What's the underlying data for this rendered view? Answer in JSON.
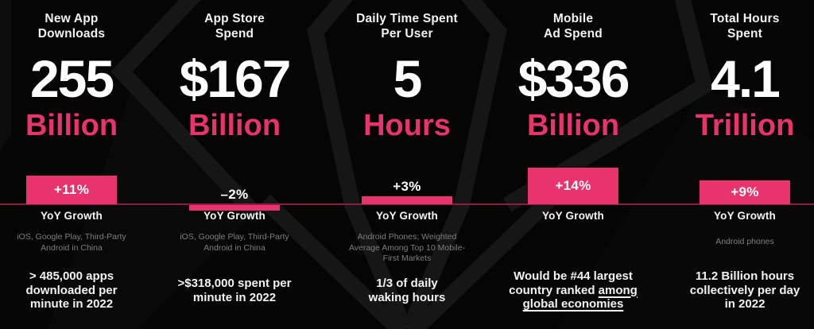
{
  "brand": {
    "accent_pink": "#e9336c",
    "baseline_red": "#8e1b40",
    "background": "#050505",
    "text_white": "#f2f2f2",
    "text_gray": "#7e7e7e"
  },
  "columns": [
    {
      "title": "New App\nDownloads",
      "value": "255",
      "unit": "Billion",
      "growth_caption": "YoY Growth",
      "source": "iOS, Google Play, Third-Party\nAndroid in China",
      "fact": "> 485,000 apps\ndownloaded per\nminute in 2022"
    },
    {
      "title": "App Store\nSpend",
      "value": "$167",
      "unit": "Billion",
      "growth_caption": "YoY Growth",
      "source": "iOS, Google Play, Third-Party\nAndroid in China",
      "fact": ">$318,000 spent per\nminute in 2022"
    },
    {
      "title": "Daily Time Spent\nPer User",
      "value": "5",
      "unit": "Hours",
      "growth_caption": "YoY Growth",
      "source": "Android Phones; Weighted\nAverage Among Top 10 Mobile-\nFirst Markets",
      "fact": "1/3 of daily\nwaking hours"
    },
    {
      "title": "Mobile\nAd Spend",
      "value": "$336",
      "unit": "Billion",
      "growth_caption": "YoY Growth",
      "source": "",
      "fact_parts": [
        {
          "text": "Would be #44 largest\ncountry ranked ",
          "underline": false
        },
        {
          "text": "among",
          "underline": true
        },
        {
          "text": "\n",
          "underline": false
        },
        {
          "text": "global economies",
          "underline": true
        }
      ]
    },
    {
      "title": "Total Hours\nSpent",
      "value": "4.1",
      "unit": "Trillion",
      "growth_caption": "YoY Growth",
      "source": "Android phones",
      "fact": "11.2 Billion hours\ncollectively per day\nin 2022"
    }
  ],
  "chart_data": {
    "type": "bar",
    "title": "YoY Growth",
    "categories": [
      "New App Downloads",
      "App Store Spend",
      "Daily Time Spent Per User",
      "Mobile Ad Spend",
      "Total Hours Spent"
    ],
    "values": [
      11,
      -2,
      3,
      14,
      9
    ],
    "value_labels": [
      "+11%",
      "–2%",
      "+3%",
      "+14%",
      "+9%"
    ],
    "unit": "%",
    "baseline": 0,
    "bar_color": "#e9336c",
    "axis_color": "#8e1b40",
    "grid": false,
    "legend": false
  }
}
